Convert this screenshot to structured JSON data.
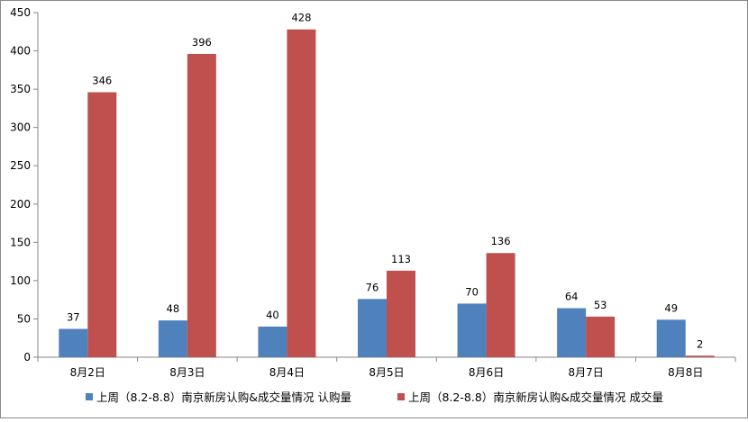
{
  "chart_data": {
    "type": "bar",
    "title": "",
    "xlabel": "",
    "ylabel": "",
    "ylim": [
      0,
      450
    ],
    "yticks": [
      0,
      50,
      100,
      150,
      200,
      250,
      300,
      350,
      400,
      450
    ],
    "grid": false,
    "legend_position": "bottom",
    "categories": [
      "8月2日",
      "8月3日",
      "8月4日",
      "8月5日",
      "8月6日",
      "8月7日",
      "8月8日"
    ],
    "series": [
      {
        "name": "上周（8.2-8.8）南京新房认购&成交量情况  认购量",
        "color": "#4F81BD",
        "values": [
          37,
          48,
          40,
          76,
          70,
          64,
          49
        ]
      },
      {
        "name": "上周（8.2-8.8）南京新房认购&成交量情况  成交量",
        "color": "#C0504D",
        "values": [
          346,
          396,
          428,
          113,
          136,
          53,
          2
        ]
      }
    ]
  }
}
